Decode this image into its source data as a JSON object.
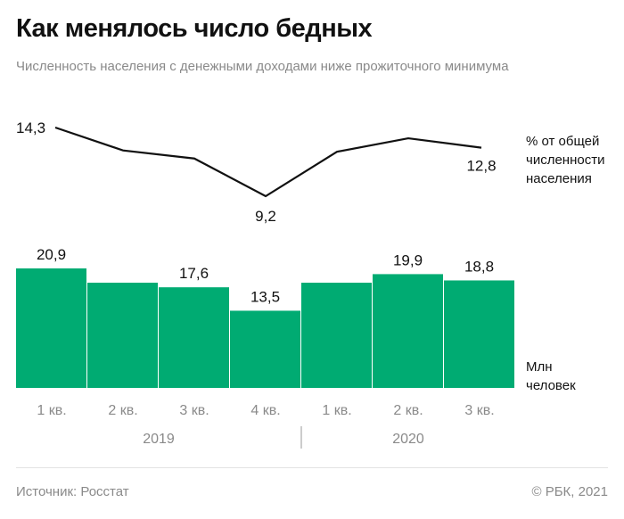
{
  "header": {
    "title": "Как менялось число бедных",
    "subtitle": "Численность населения с денежными доходами ниже прожиточного минимума"
  },
  "footer": {
    "source": "Источник: Росстат",
    "copyright": "© РБК, 2021"
  },
  "legend": {
    "line_unit": [
      "% от общей",
      "численности",
      "населения"
    ],
    "bar_unit": [
      "Млн",
      "человек"
    ]
  },
  "colors": {
    "bar": "#00ab72",
    "line": "#111111",
    "tick_text": "#8a8a8a"
  },
  "chart_data": {
    "type": "bar",
    "categories": [
      "1 кв.",
      "2 кв.",
      "3 кв.",
      "4 кв.",
      "1 кв.",
      "2 кв.",
      "3 кв."
    ],
    "groups": [
      {
        "label": "2019",
        "count": 4
      },
      {
        "label": "2020",
        "count": 3
      }
    ],
    "series": [
      {
        "type": "bar",
        "values": [
          20.9,
          18.4,
          17.6,
          13.5,
          18.4,
          19.9,
          18.8
        ],
        "labels": [
          "20,9",
          "",
          "17,6",
          "13,5",
          "",
          "19,9",
          "18,8"
        ],
        "ylim": [
          0,
          20.9
        ]
      },
      {
        "type": "line",
        "values": [
          14.3,
          12.6,
          12.0,
          9.2,
          12.5,
          13.5,
          12.8
        ],
        "labels": [
          "14,3",
          "",
          "",
          "9,2",
          "",
          "",
          "12,8"
        ],
        "ylim": [
          9.2,
          14.3
        ]
      }
    ]
  }
}
